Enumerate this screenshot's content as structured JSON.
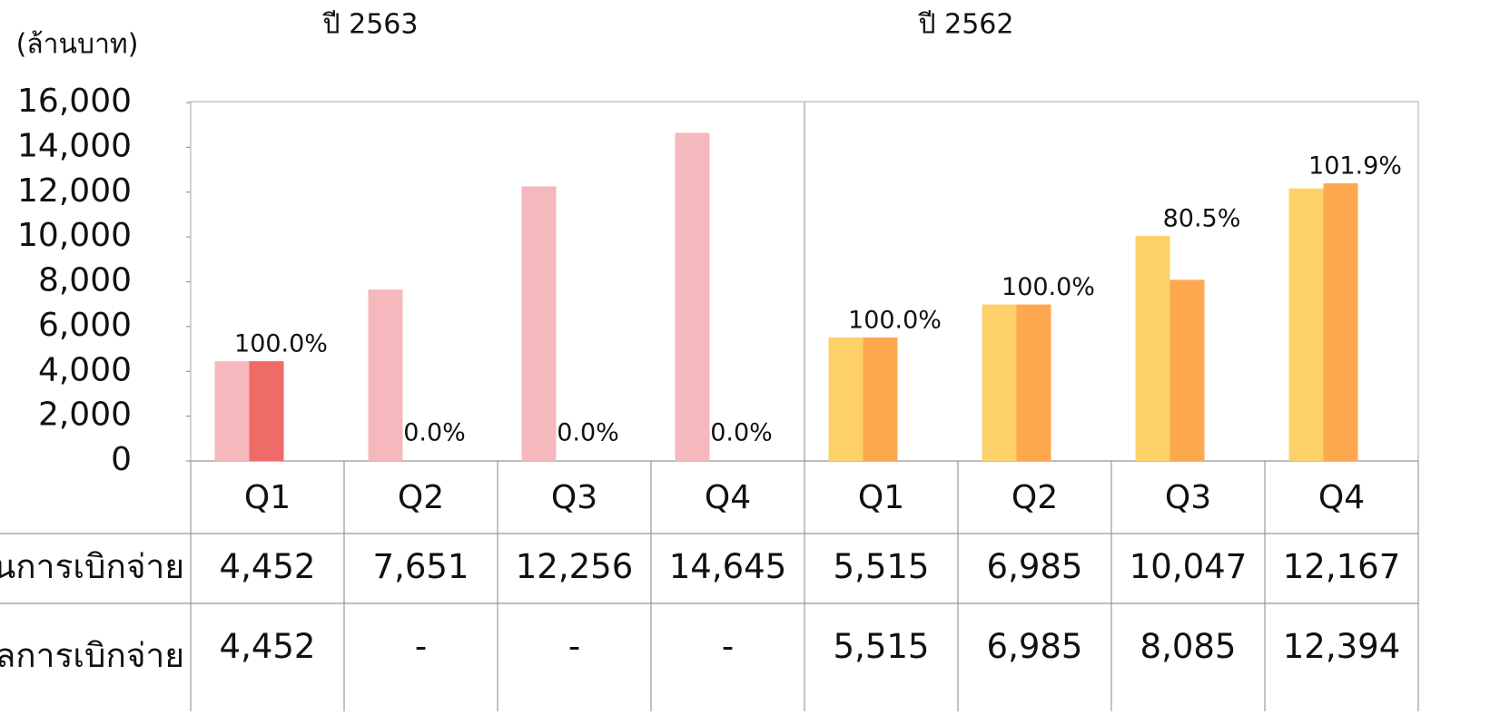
{
  "chart_data": {
    "type": "bar",
    "y_unit": "(ล้านบาท)",
    "ylim": [
      0,
      16000
    ],
    "yticks": [
      0,
      {
        "value": 2000,
        "label": "2,000"
      },
      {
        "value": 4000,
        "label": "4,000"
      },
      {
        "value": 6000,
        "label": "6,000"
      },
      {
        "value": 8000,
        "label": "8,000"
      },
      {
        "value": 10000,
        "label": "10,000"
      },
      {
        "value": 12000,
        "label": "12,000"
      },
      {
        "value": 14000,
        "label": "14,000"
      },
      {
        "value": 16000,
        "label": "16,000"
      }
    ],
    "table_rows": [
      "แผนการเบิกจ่าย",
      "ผลการเบิกจ่าย"
    ],
    "groups": [
      {
        "title": "ปี 2563",
        "categories": [
          "Q1",
          "Q2",
          "Q3",
          "Q4"
        ],
        "series": [
          {
            "color": "#f4b8bd",
            "values": [
              4452,
              7651,
              12256,
              14645
            ],
            "value_labels": [
              "4,452",
              "7,651",
              "12,256",
              "14,645"
            ]
          },
          {
            "color": "#ef6b68",
            "values": [
              4452,
              0,
              0,
              0
            ],
            "value_labels": [
              "4,452",
              "-",
              "-",
              "-"
            ]
          }
        ],
        "percents": [
          100.0,
          0.0,
          0.0,
          0.0
        ],
        "percent_labels": [
          "100.0%",
          "0.0%",
          "0.0%",
          "0.0%"
        ]
      },
      {
        "title": "ปี 2562",
        "categories": [
          "Q1",
          "Q2",
          "Q3",
          "Q4"
        ],
        "series": [
          {
            "color": "#fdd06a",
            "values": [
              5515,
              6985,
              10047,
              12167
            ],
            "value_labels": [
              "5,515",
              "6,985",
              "10,047",
              "12,167"
            ]
          },
          {
            "color": "#fda84f",
            "values": [
              5515,
              6985,
              8085,
              12394
            ],
            "value_labels": [
              "5,515",
              "6,985",
              "8,085",
              "12,394"
            ]
          }
        ],
        "percents": [
          100.0,
          100.0,
          80.5,
          101.9
        ],
        "percent_labels": [
          "100.0%",
          "100.0%",
          "80.5%",
          "101.9%"
        ]
      }
    ]
  }
}
